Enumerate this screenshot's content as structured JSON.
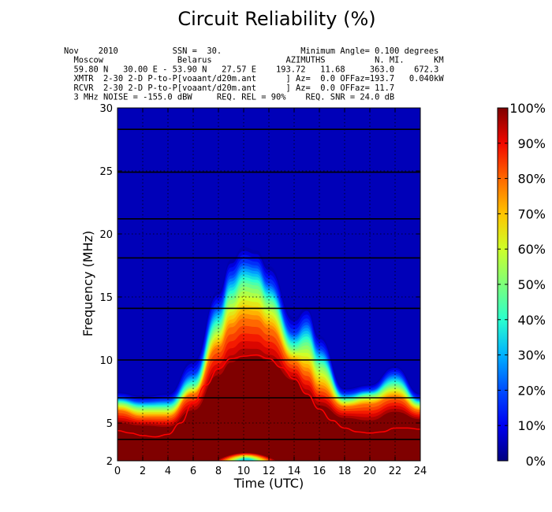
{
  "chart_data": {
    "type": "heatmap",
    "title": "Circuit Reliability (%)",
    "xlabel": "Time (UTC)",
    "ylabel": "Frequency (MHz)",
    "xlim": [
      0,
      24
    ],
    "ylim": [
      2,
      30
    ],
    "x_ticks": [
      "0",
      "2",
      "4",
      "6",
      "8",
      "10",
      "12",
      "14",
      "16",
      "18",
      "20",
      "22",
      "24"
    ],
    "y_ticks": [
      "2",
      "5",
      "10",
      "15",
      "20",
      "25",
      "30"
    ],
    "colorbar_ticks": [
      "0%",
      "10%",
      "20%",
      "30%",
      "40%",
      "50%",
      "60%",
      "70%",
      "80%",
      "90%",
      "100%"
    ],
    "colorbar_colors": [
      "#00007f",
      "#0000f1",
      "#004dff",
      "#00b1ff",
      "#29ffce",
      "#7dff7a",
      "#ceff29",
      "#ffc400",
      "#ff6800",
      "#f10700",
      "#7f0000"
    ],
    "grid": true,
    "header_lines": [
      "Nov    2010           SSN =  30.                Minimum Angle= 0.100 degrees",
      "  Moscow               Belarus               AZIMUTHS          N. MI.      KM",
      "  59.80 N   30.00 E - 53.90 N   27.57 E    193.72   11.68     363.0    672.3",
      "  XMTR  2-30 2-D P-to-P[voaant/d20m.ant      ] Az=  0.0 OFFaz=193.7   0.040kW",
      "  RCVR  2-30 2-D P-to-P[voaant/d20m.ant      ] Az=  0.0 OFFaz= 11.7",
      "  3 MHz NOISE = -155.0 dBW     REQ. REL = 90%    REQ. SNR = 24.0 dB"
    ],
    "mufday_band_frequencies_mhz": [
      3.7,
      7.0,
      10.0,
      14.1,
      18.1,
      21.2,
      24.9,
      28.3
    ],
    "muf_line": {
      "color": "#ff0000",
      "x": [
        0,
        1,
        2,
        3,
        4,
        5,
        6,
        7,
        8,
        9,
        10,
        11,
        12,
        13,
        14,
        15,
        16,
        17,
        18,
        19,
        20,
        21,
        22,
        23,
        24
      ],
      "y": [
        4.4,
        4.2,
        4.0,
        3.9,
        4.1,
        5.0,
        6.6,
        8.0,
        9.3,
        10.1,
        10.3,
        10.4,
        10.1,
        9.4,
        8.5,
        7.3,
        6.1,
        5.2,
        4.6,
        4.3,
        4.2,
        4.3,
        4.6,
        4.6,
        4.5
      ]
    },
    "reliability_profile": {
      "description_units": "hour (UTC) vs frequency (MHz) at which reliability levels end",
      "hours": [
        0,
        2,
        4,
        6,
        8,
        9,
        10,
        11,
        12,
        14,
        15,
        16,
        18,
        20,
        22,
        24
      ],
      "f_100pct": [
        5.0,
        4.8,
        4.7,
        6.0,
        8.8,
        9.8,
        10.3,
        10.3,
        9.9,
        8.4,
        7.3,
        6.4,
        5.4,
        5.2,
        5.9,
        5.3
      ],
      "f_80pct": [
        6.0,
        5.5,
        5.5,
        7.3,
        11.0,
        12.6,
        13.3,
        13.2,
        12.5,
        9.9,
        9.1,
        7.8,
        6.3,
        6.5,
        7.1,
        6.0
      ],
      "f_50pct": [
        6.6,
        6.2,
        6.2,
        7.9,
        12.6,
        14.9,
        16.0,
        15.8,
        14.6,
        10.9,
        11.3,
        9.6,
        6.8,
        7.2,
        8.0,
        6.5
      ],
      "f_20pct": [
        7.0,
        6.7,
        6.8,
        8.9,
        14.2,
        16.7,
        17.7,
        17.5,
        16.1,
        12.1,
        13.0,
        10.9,
        7.3,
        7.6,
        8.9,
        6.9
      ],
      "f_0pct": [
        7.6,
        7.3,
        7.5,
        10.3,
        15.8,
        18.3,
        19.3,
        19.0,
        17.8,
        13.7,
        14.5,
        12.2,
        7.9,
        8.2,
        9.7,
        7.5
      ]
    },
    "low_band_dip": {
      "x_center": 10.2,
      "y_top": 3.0,
      "half_width": 2.6
    }
  }
}
